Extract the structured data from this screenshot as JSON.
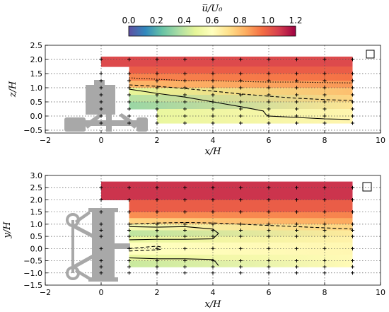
{
  "colorbar": {
    "title": "u̅/U₀",
    "ticks": [
      0.0,
      0.2,
      0.4,
      0.6,
      0.8,
      1.0,
      1.2
    ],
    "tick_labels": [
      "0.0",
      "0.2",
      "0.4",
      "0.6",
      "0.8",
      "1.0",
      "1.2"
    ],
    "range": [
      0.0,
      1.2
    ],
    "colors": [
      "#5e4fa2",
      "#3288bd",
      "#66c2a5",
      "#abdda4",
      "#e6f598",
      "#ffffbf",
      "#fee08b",
      "#fdae61",
      "#f46d43",
      "#d53e4f",
      "#9e0142"
    ]
  },
  "chart_data": [
    {
      "type": "heatmap",
      "view": "side",
      "xlabel": "x/H",
      "ylabel": "z/H",
      "xlim": [
        -2,
        10
      ],
      "ylim": [
        -0.6,
        2.5
      ],
      "xticks": [
        -2,
        0,
        2,
        4,
        6,
        8,
        10
      ],
      "xtick_labels": [
        "−2",
        "0",
        "2",
        "4",
        "6",
        "8",
        "10"
      ],
      "yticks": [
        -0.5,
        0.0,
        0.5,
        1.0,
        1.5,
        2.0,
        2.5
      ],
      "ytick_labels": [
        "−0.5",
        "0.0",
        "0.5",
        "1.0",
        "1.5",
        "2.0",
        "2.5"
      ],
      "grid": true,
      "rows": [
        {
          "x": [
            0,
            9
          ],
          "y": [
            1.75,
            2.1
          ],
          "u": [
            1.05,
            1.05
          ]
        },
        {
          "x": [
            1,
            9
          ],
          "y": [
            1.5,
            1.75
          ],
          "u": [
            1.0,
            1.0
          ]
        },
        {
          "x": [
            1,
            9
          ],
          "y": [
            1.25,
            1.5
          ],
          "u": [
            0.92,
            0.95
          ]
        },
        {
          "x": [
            1,
            9
          ],
          "y": [
            1.0,
            1.25
          ],
          "u": [
            0.82,
            0.88
          ]
        },
        {
          "x": [
            1,
            9
          ],
          "y": [
            0.75,
            1.0
          ],
          "u": [
            0.48,
            0.8
          ]
        },
        {
          "x": [
            1,
            9
          ],
          "y": [
            0.5,
            0.75
          ],
          "u": [
            0.38,
            0.75
          ]
        },
        {
          "x": [
            1,
            9
          ],
          "y": [
            0.25,
            0.5
          ],
          "u": [
            0.33,
            0.7
          ]
        },
        {
          "x": [
            2,
            9
          ],
          "y": [
            -0.25,
            0.25
          ],
          "u": [
            0.5,
            0.64
          ]
        }
      ],
      "contours": [
        {
          "style": "dotted",
          "x": [
            1,
            2,
            3,
            4,
            5,
            6,
            7,
            8,
            9
          ],
          "y": [
            1.35,
            1.3,
            1.25,
            1.25,
            1.22,
            1.2,
            1.2,
            1.18,
            1.17
          ]
        },
        {
          "style": "dashed",
          "x": [
            1,
            2,
            3,
            4,
            5,
            6,
            7,
            8,
            9
          ],
          "y": [
            1.1,
            1.05,
            0.97,
            0.88,
            0.78,
            0.7,
            0.63,
            0.58,
            0.55
          ]
        },
        {
          "style": "solid",
          "x": [
            1,
            2,
            3,
            4,
            5,
            5.8,
            5.9,
            6,
            7,
            8,
            8.9
          ],
          "y": [
            0.95,
            0.8,
            0.67,
            0.5,
            0.33,
            0.18,
            0.05,
            0.0,
            -0.05,
            -0.1,
            -0.12
          ]
        }
      ],
      "grid_points": {
        "x": [
          0,
          1,
          2,
          3,
          4,
          5,
          6,
          7,
          8,
          9
        ],
        "y": [
          -0.25,
          0.0,
          0.25,
          0.5,
          0.75,
          1.0,
          1.25,
          1.5,
          2.0
        ]
      }
    },
    {
      "type": "heatmap",
      "view": "top",
      "xlabel": "x/H",
      "ylabel": "y/H",
      "xlim": [
        -2,
        10
      ],
      "ylim": [
        -1.5,
        3.0
      ],
      "xticks": [
        -2,
        0,
        2,
        4,
        6,
        8,
        10
      ],
      "xtick_labels": [
        "−2",
        "0",
        "2",
        "4",
        "6",
        "8",
        "10"
      ],
      "yticks": [
        -1.5,
        -1.0,
        -0.5,
        0.0,
        0.5,
        1.0,
        1.5,
        2.0,
        2.5,
        3.0
      ],
      "ytick_labels": [
        "−1.5",
        "−1.0",
        "−0.5",
        "0.0",
        "0.5",
        "1.0",
        "1.5",
        "2.0",
        "2.5",
        "3.0"
      ],
      "grid": true,
      "rows": [
        {
          "x": [
            0,
            9
          ],
          "y": [
            2.0,
            2.75
          ],
          "u": [
            1.1,
            1.1
          ]
        },
        {
          "x": [
            1,
            9
          ],
          "y": [
            1.5,
            2.0
          ],
          "u": [
            1.0,
            1.0
          ]
        },
        {
          "x": [
            1,
            9
          ],
          "y": [
            1.25,
            1.5
          ],
          "u": [
            0.9,
            0.92
          ]
        },
        {
          "x": [
            1,
            9
          ],
          "y": [
            1.0,
            1.25
          ],
          "u": [
            0.75,
            0.85
          ]
        },
        {
          "x": [
            1,
            9
          ],
          "y": [
            0.75,
            1.0
          ],
          "u": [
            0.55,
            0.75
          ]
        },
        {
          "x": [
            1,
            9
          ],
          "y": [
            0.5,
            0.75
          ],
          "u": [
            0.4,
            0.68
          ]
        },
        {
          "x": [
            1,
            9
          ],
          "y": [
            0.25,
            0.5
          ],
          "u": [
            0.5,
            0.65
          ]
        },
        {
          "x": [
            1,
            9
          ],
          "y": [
            -0.25,
            0.25
          ],
          "u": [
            0.6,
            0.63
          ]
        },
        {
          "x": [
            1,
            9
          ],
          "y": [
            -0.5,
            -0.25
          ],
          "u": [
            0.5,
            0.62
          ]
        },
        {
          "x": [
            1,
            9
          ],
          "y": [
            -0.75,
            -0.5
          ],
          "u": [
            0.42,
            0.62
          ]
        }
      ],
      "contours": [
        {
          "style": "dashed",
          "x": [
            1,
            2,
            3,
            4,
            5,
            6,
            7,
            8,
            9
          ],
          "y": [
            1.0,
            1.05,
            1.07,
            1.05,
            1.0,
            0.95,
            0.9,
            0.85,
            0.8
          ]
        },
        {
          "style": "solid",
          "x": [
            1,
            2,
            3,
            4,
            4.2,
            4.0,
            3,
            2,
            1
          ],
          "y": [
            0.9,
            0.88,
            0.9,
            0.8,
            0.62,
            0.4,
            0.38,
            0.38,
            0.36
          ]
        },
        {
          "style": "dashed",
          "x": [
            1,
            1.5,
            2,
            2.2
          ],
          "y": [
            0.0,
            0.05,
            0.1,
            0.05
          ]
        },
        {
          "style": "dashed",
          "x": [
            1,
            1.5,
            2,
            2.2
          ],
          "y": [
            -0.1,
            -0.08,
            -0.05,
            -0.02
          ]
        },
        {
          "style": "solid",
          "x": [
            1,
            2,
            3,
            4,
            4.1,
            4.2
          ],
          "y": [
            -0.38,
            -0.42,
            -0.42,
            -0.45,
            -0.55,
            -0.7
          ]
        }
      ],
      "grid_points": {
        "x": [
          0,
          1,
          2,
          3,
          4,
          5,
          6,
          7,
          8,
          9
        ],
        "y": [
          -1.0,
          -0.75,
          -0.5,
          0.0,
          0.5,
          0.75,
          1.0,
          1.5,
          2.0,
          2.5
        ]
      }
    }
  ]
}
